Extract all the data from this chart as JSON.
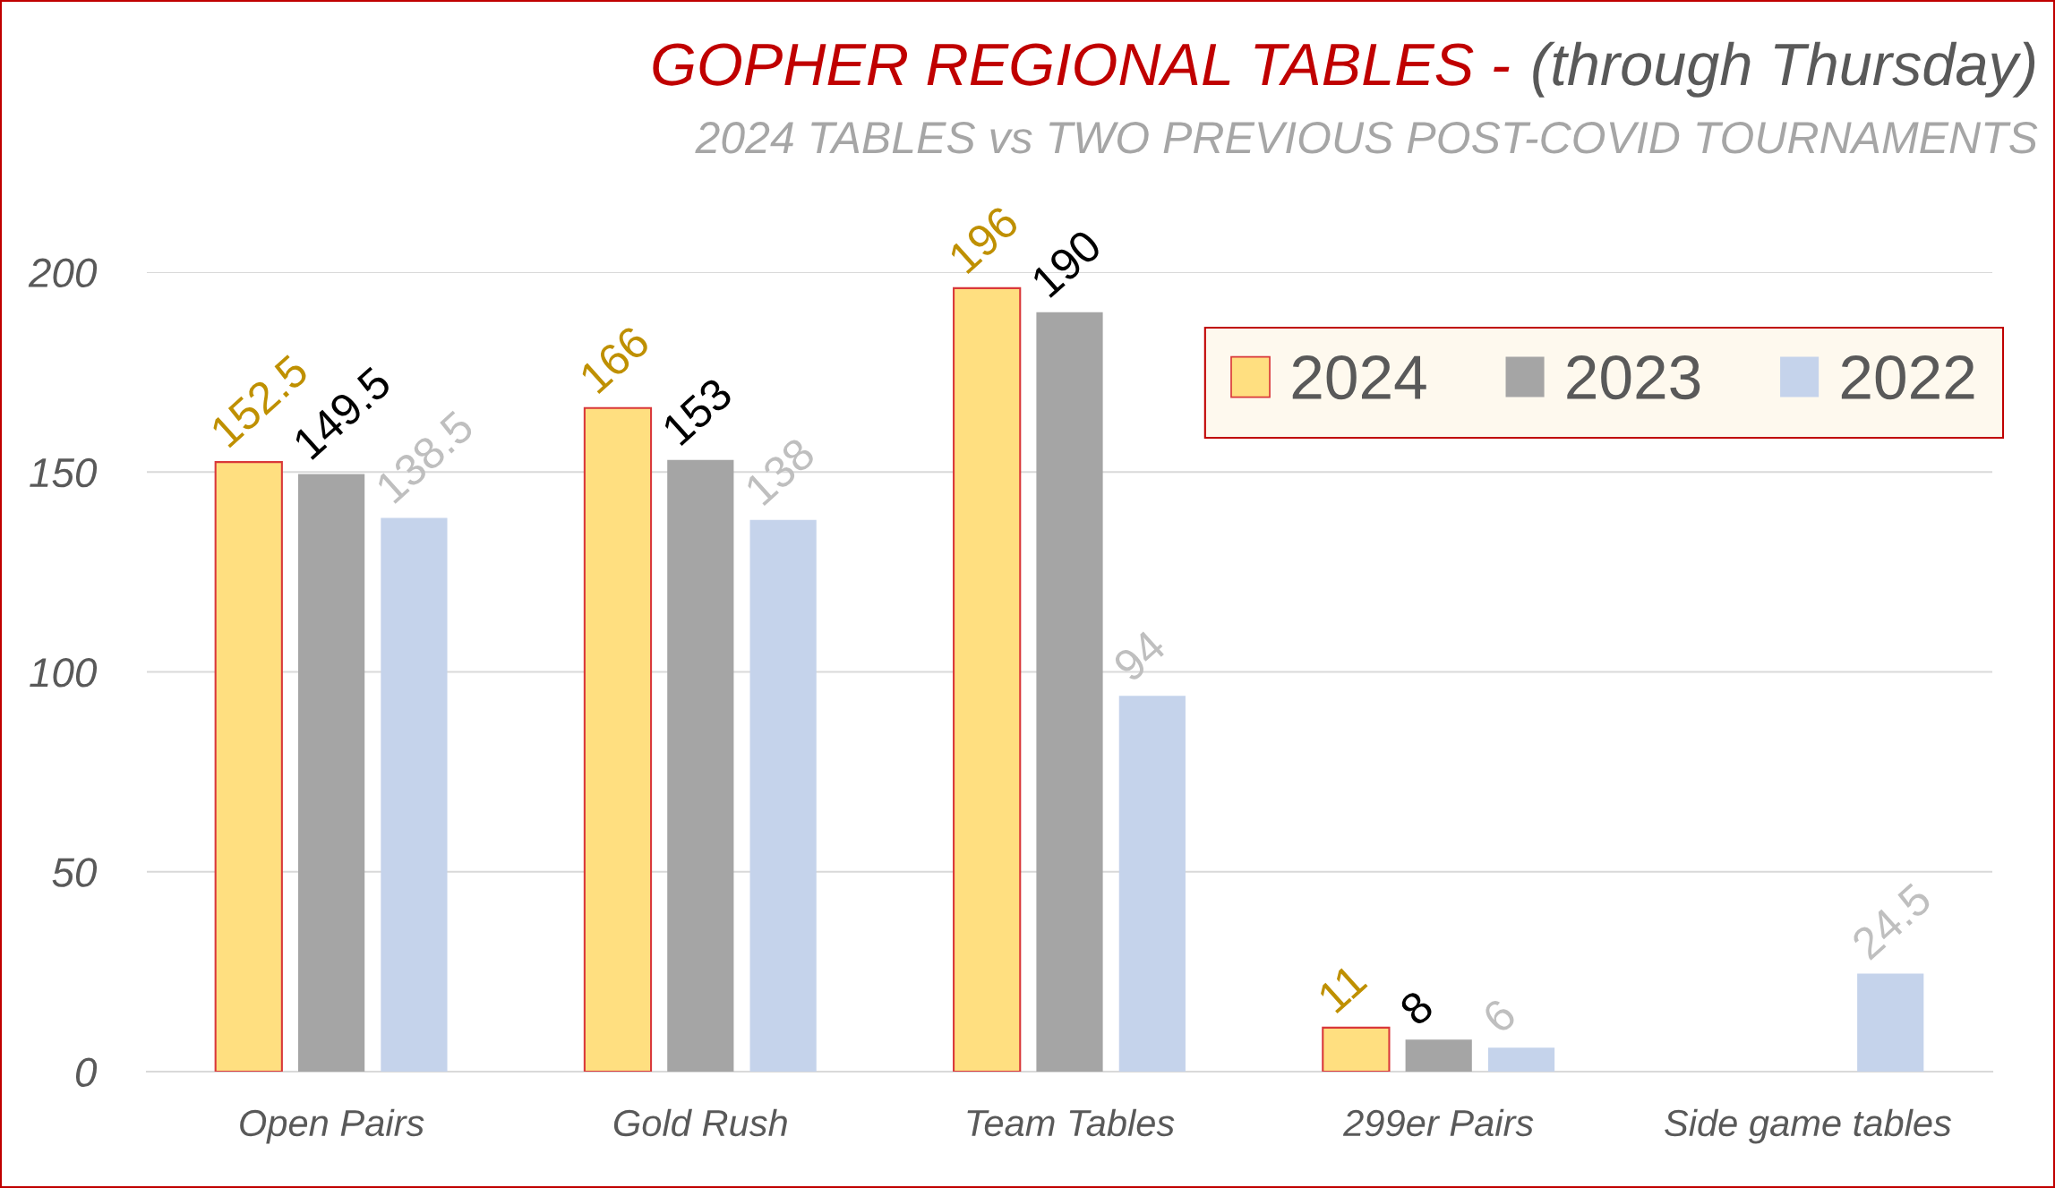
{
  "chart_data": {
    "type": "bar",
    "title": "GOPHER REGIONAL TABLES - (through Thursday)",
    "subtitle": "2024 TABLES vs TWO PREVIOUS POST-COVID TOURNAMENTS",
    "categories": [
      "Open Pairs",
      "Gold Rush",
      "Team Tables",
      "299er Pairs",
      "Side game tables"
    ],
    "series": [
      {
        "name": "2024",
        "color": "#ffdf80",
        "values": [
          152.5,
          166,
          196,
          11,
          null
        ]
      },
      {
        "name": "2023",
        "color": "#a5a5a5",
        "values": [
          149.5,
          153,
          190,
          8,
          null
        ]
      },
      {
        "name": "2022",
        "color": "#c5d3eb",
        "values": [
          138.5,
          138,
          94,
          6,
          24.5
        ]
      }
    ],
    "ylim": [
      0,
      200
    ],
    "yticks": [
      0,
      50,
      100,
      150,
      200
    ],
    "grid": "y",
    "legend": "top right",
    "data_labels": true
  }
}
